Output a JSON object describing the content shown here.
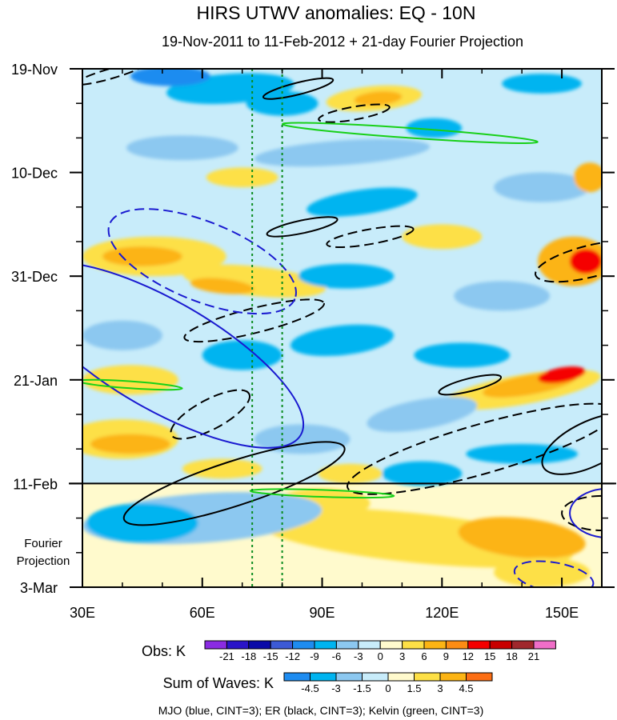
{
  "chart_data": {
    "type": "heatmap",
    "title": "HIRS UTWV anomalies: EQ - 10N",
    "subtitle": "19-Nov-2011 to 11-Feb-2012 + 21-day Fourier Projection",
    "x_axis": {
      "range": [
        30,
        160
      ],
      "ticks": [
        30,
        60,
        90,
        120,
        150
      ],
      "tick_labels": [
        "30E",
        "60E",
        "90E",
        "120E",
        "150E"
      ]
    },
    "y_axis": {
      "range_days": [
        0,
        105
      ],
      "ticks": [
        0,
        21,
        42,
        63,
        84,
        105
      ],
      "tick_labels": [
        "19-Nov",
        "10-Dec",
        "31-Dec",
        "21-Jan",
        "11-Feb",
        "3-Mar"
      ]
    },
    "projection_start_day": 84,
    "projection_label": [
      "Fourier",
      "Projection"
    ],
    "dotted_longitudes": [
      72.5,
      80
    ],
    "obs_colorbar": {
      "label": "Obs: K",
      "levels": [
        "-21",
        "-18",
        "-15",
        "-12",
        "-9",
        "-6",
        "-3",
        "0",
        "3",
        "6",
        "9",
        "12",
        "15",
        "18",
        "21"
      ],
      "colors": [
        "#8a2be2",
        "#2a14c8",
        "#0a0aa8",
        "#3c5ad6",
        "#1e8cf0",
        "#00b4f0",
        "#8cc8f0",
        "#c8ecfa",
        "#fffacd",
        "#fde046",
        "#fcb414",
        "#fc8c14",
        "#f50000",
        "#c80000",
        "#a0282d",
        "#f06ec8"
      ]
    },
    "waves_colorbar": {
      "label": "Sum of Waves: K",
      "levels": [
        "-4.5",
        "-3",
        "-1.5",
        "0",
        "1.5",
        "3",
        "4.5"
      ],
      "colors": [
        "#1e8cf0",
        "#00b4f0",
        "#8cc8f0",
        "#c8ecfa",
        "#fffacd",
        "#fde046",
        "#fcb414",
        "#fc6e14"
      ]
    },
    "contour_legend": "MJO (blue, CINT=3); ER (black, CINT=3); Kelvin (green, CINT=3)",
    "series_colors": {
      "mjo": "#1a1ad0",
      "er": "#000000",
      "kelvin": "#18d018"
    },
    "field_blobs": [
      {
        "lon": 67,
        "day": 4,
        "rx": 16,
        "ry": 3,
        "level": "neg",
        "angle": -4
      },
      {
        "lon": 52,
        "day": 1.5,
        "rx": 10,
        "ry": 2,
        "level": "neg2",
        "angle": 0
      },
      {
        "lon": 80,
        "day": 7,
        "rx": 9,
        "ry": 2.5,
        "level": "neg",
        "angle": 0
      },
      {
        "lon": 55,
        "day": 16,
        "rx": 14,
        "ry": 2.5,
        "level": "negl",
        "angle": 0
      },
      {
        "lon": 103,
        "day": 6,
        "rx": 12,
        "ry": 2.5,
        "level": "pos",
        "angle": -5
      },
      {
        "lon": 104,
        "day": 6,
        "rx": 6,
        "ry": 1.4,
        "level": "pos2",
        "angle": -5
      },
      {
        "lon": 118,
        "day": 12,
        "rx": 7,
        "ry": 2,
        "level": "neg",
        "angle": 0
      },
      {
        "lon": 145,
        "day": 3,
        "rx": 10,
        "ry": 2,
        "level": "neg",
        "angle": 0
      },
      {
        "lon": 95,
        "day": 17,
        "rx": 22,
        "ry": 2.5,
        "level": "negl",
        "angle": -4
      },
      {
        "lon": 70,
        "day": 22,
        "rx": 9,
        "ry": 2,
        "level": "pos",
        "angle": 0
      },
      {
        "lon": 100,
        "day": 27,
        "rx": 14,
        "ry": 2.5,
        "level": "neg",
        "angle": -8
      },
      {
        "lon": 145,
        "day": 24,
        "rx": 12,
        "ry": 3,
        "level": "negl",
        "angle": 0
      },
      {
        "lon": 157,
        "day": 22,
        "rx": 4,
        "ry": 3,
        "level": "pos2",
        "angle": 0
      },
      {
        "lon": 48,
        "day": 38,
        "rx": 18,
        "ry": 4,
        "level": "pos",
        "angle": 0
      },
      {
        "lon": 45,
        "day": 38,
        "rx": 10,
        "ry": 2,
        "level": "pos2",
        "angle": 0
      },
      {
        "lon": 73,
        "day": 43,
        "rx": 18,
        "ry": 3,
        "level": "pos",
        "angle": 6
      },
      {
        "lon": 65,
        "day": 44,
        "rx": 8,
        "ry": 1.5,
        "level": "pos2",
        "angle": 6
      },
      {
        "lon": 120,
        "day": 34,
        "rx": 10,
        "ry": 2.5,
        "level": "pos",
        "angle": 0
      },
      {
        "lon": 153,
        "day": 39,
        "rx": 9,
        "ry": 5,
        "level": "pos2",
        "angle": 0
      },
      {
        "lon": 156,
        "day": 39,
        "rx": 4,
        "ry": 2.5,
        "level": "pos3",
        "angle": 0
      },
      {
        "lon": 96,
        "day": 42,
        "rx": 12,
        "ry": 2.5,
        "level": "neg",
        "angle": 0
      },
      {
        "lon": 135,
        "day": 46,
        "rx": 12,
        "ry": 3,
        "level": "negl",
        "angle": 0
      },
      {
        "lon": 40,
        "day": 54,
        "rx": 10,
        "ry": 3,
        "level": "negl",
        "angle": 0
      },
      {
        "lon": 95,
        "day": 55,
        "rx": 13,
        "ry": 3,
        "level": "neg",
        "angle": -6
      },
      {
        "lon": 70,
        "day": 58,
        "rx": 10,
        "ry": 3,
        "level": "neg",
        "angle": 0
      },
      {
        "lon": 125,
        "day": 58,
        "rx": 12,
        "ry": 2.5,
        "level": "neg",
        "angle": 0
      },
      {
        "lon": 42,
        "day": 63,
        "rx": 12,
        "ry": 3,
        "level": "pos",
        "angle": 0
      },
      {
        "lon": 40,
        "day": 75,
        "rx": 14,
        "ry": 4,
        "level": "pos",
        "angle": 0
      },
      {
        "lon": 42,
        "day": 76,
        "rx": 10,
        "ry": 2,
        "level": "pos2",
        "angle": 0
      },
      {
        "lon": 140,
        "day": 65,
        "rx": 20,
        "ry": 3,
        "level": "pos",
        "angle": -10
      },
      {
        "lon": 142,
        "day": 64,
        "rx": 12,
        "ry": 2,
        "level": "pos2",
        "angle": -10
      },
      {
        "lon": 150,
        "day": 62,
        "rx": 6,
        "ry": 1.5,
        "level": "pos3",
        "angle": -10
      },
      {
        "lon": 115,
        "day": 70,
        "rx": 14,
        "ry": 3,
        "level": "negl",
        "angle": -10
      },
      {
        "lon": 140,
        "day": 78,
        "rx": 14,
        "ry": 2,
        "level": "neg",
        "angle": 0
      },
      {
        "lon": 85,
        "day": 75,
        "rx": 12,
        "ry": 3,
        "level": "negl",
        "angle": 0
      },
      {
        "lon": 97,
        "day": 82,
        "rx": 8,
        "ry": 2,
        "level": "pos",
        "angle": 0
      },
      {
        "lon": 115,
        "day": 82,
        "rx": 10,
        "ry": 2.5,
        "level": "neg",
        "angle": 0
      },
      {
        "lon": 65,
        "day": 81,
        "rx": 10,
        "ry": 2,
        "level": "pos",
        "angle": 0
      },
      {
        "lon": 113,
        "day": 95,
        "rx": 40,
        "ry": 5,
        "level": "wpos",
        "angle": 6
      },
      {
        "lon": 140,
        "day": 95,
        "rx": 16,
        "ry": 4,
        "level": "wpos2",
        "angle": 6
      },
      {
        "lon": 90,
        "day": 88,
        "rx": 12,
        "ry": 3,
        "level": "wpos",
        "angle": 0
      },
      {
        "lon": 60,
        "day": 91,
        "rx": 30,
        "ry": 5,
        "level": "wneg",
        "angle": -4
      },
      {
        "lon": 45,
        "day": 92,
        "rx": 14,
        "ry": 4,
        "level": "wneg2",
        "angle": 0
      },
      {
        "lon": 145,
        "day": 102,
        "rx": 12,
        "ry": 3,
        "level": "wpos",
        "angle": 0
      }
    ],
    "contours": [
      {
        "wave": "er",
        "style": "solid",
        "lon": 84,
        "day": 4,
        "rx": 9,
        "ry": 1.2,
        "angle": -14
      },
      {
        "wave": "er",
        "style": "dashed",
        "lon": 98,
        "day": 9,
        "rx": 9,
        "ry": 1.3,
        "angle": -10
      },
      {
        "wave": "er",
        "style": "dashed",
        "lon": 37,
        "day": 1,
        "rx": 9,
        "ry": 1,
        "angle": -16
      },
      {
        "wave": "er",
        "style": "solid",
        "lon": 85,
        "day": 32,
        "rx": 9,
        "ry": 1.3,
        "angle": -12
      },
      {
        "wave": "er",
        "style": "dashed",
        "lon": 102,
        "day": 34,
        "rx": 11,
        "ry": 1.5,
        "angle": -10
      },
      {
        "wave": "er",
        "style": "dashed",
        "lon": 73,
        "day": 51,
        "rx": 18,
        "ry": 2.5,
        "angle": -14
      },
      {
        "wave": "er",
        "style": "dashed",
        "lon": 157,
        "day": 39,
        "rx": 14,
        "ry": 3.2,
        "angle": -14
      },
      {
        "wave": "er",
        "style": "solid",
        "lon": 127,
        "day": 64,
        "rx": 8,
        "ry": 1.3,
        "angle": -14
      },
      {
        "wave": "er",
        "style": "dashed",
        "lon": 62,
        "day": 70,
        "rx": 11,
        "ry": 3,
        "angle": -28
      },
      {
        "wave": "er",
        "style": "solid",
        "lon": 68,
        "day": 84,
        "rx": 29,
        "ry": 4.5,
        "angle": -18
      },
      {
        "wave": "er",
        "style": "dashed",
        "lon": 130,
        "day": 77,
        "rx": 35,
        "ry": 5,
        "angle": -16
      },
      {
        "wave": "er",
        "style": "solid",
        "lon": 157,
        "day": 76,
        "rx": 13,
        "ry": 4.5,
        "angle": -26
      },
      {
        "wave": "er",
        "style": "dashed",
        "lon": 160,
        "day": 90,
        "rx": 10,
        "ry": 3.5,
        "angle": 0
      },
      {
        "wave": "mjo",
        "style": "dashed",
        "lon": 60,
        "day": 39,
        "rx": 25,
        "ry": 8,
        "angle": 22
      },
      {
        "wave": "mjo",
        "style": "solid",
        "lon": 50,
        "day": 58,
        "rx": 40,
        "ry": 11,
        "angle": 30
      },
      {
        "wave": "mjo",
        "style": "dashed",
        "lon": 148,
        "day": 103,
        "rx": 10,
        "ry": 3,
        "angle": 10
      },
      {
        "wave": "mjo",
        "style": "solid",
        "lon": 162,
        "day": 90,
        "rx": 10,
        "ry": 5,
        "angle": 0
      },
      {
        "wave": "kelvin",
        "style": "solid",
        "lon": 112,
        "day": 13,
        "rx": 32,
        "ry": 1,
        "angle": 4
      },
      {
        "wave": "kelvin",
        "style": "solid",
        "lon": 42,
        "day": 64,
        "rx": 13,
        "ry": 0.7,
        "angle": 4
      },
      {
        "wave": "kelvin",
        "style": "solid",
        "lon": 90,
        "day": 86,
        "rx": 18,
        "ry": 0.7,
        "angle": 2
      }
    ]
  }
}
